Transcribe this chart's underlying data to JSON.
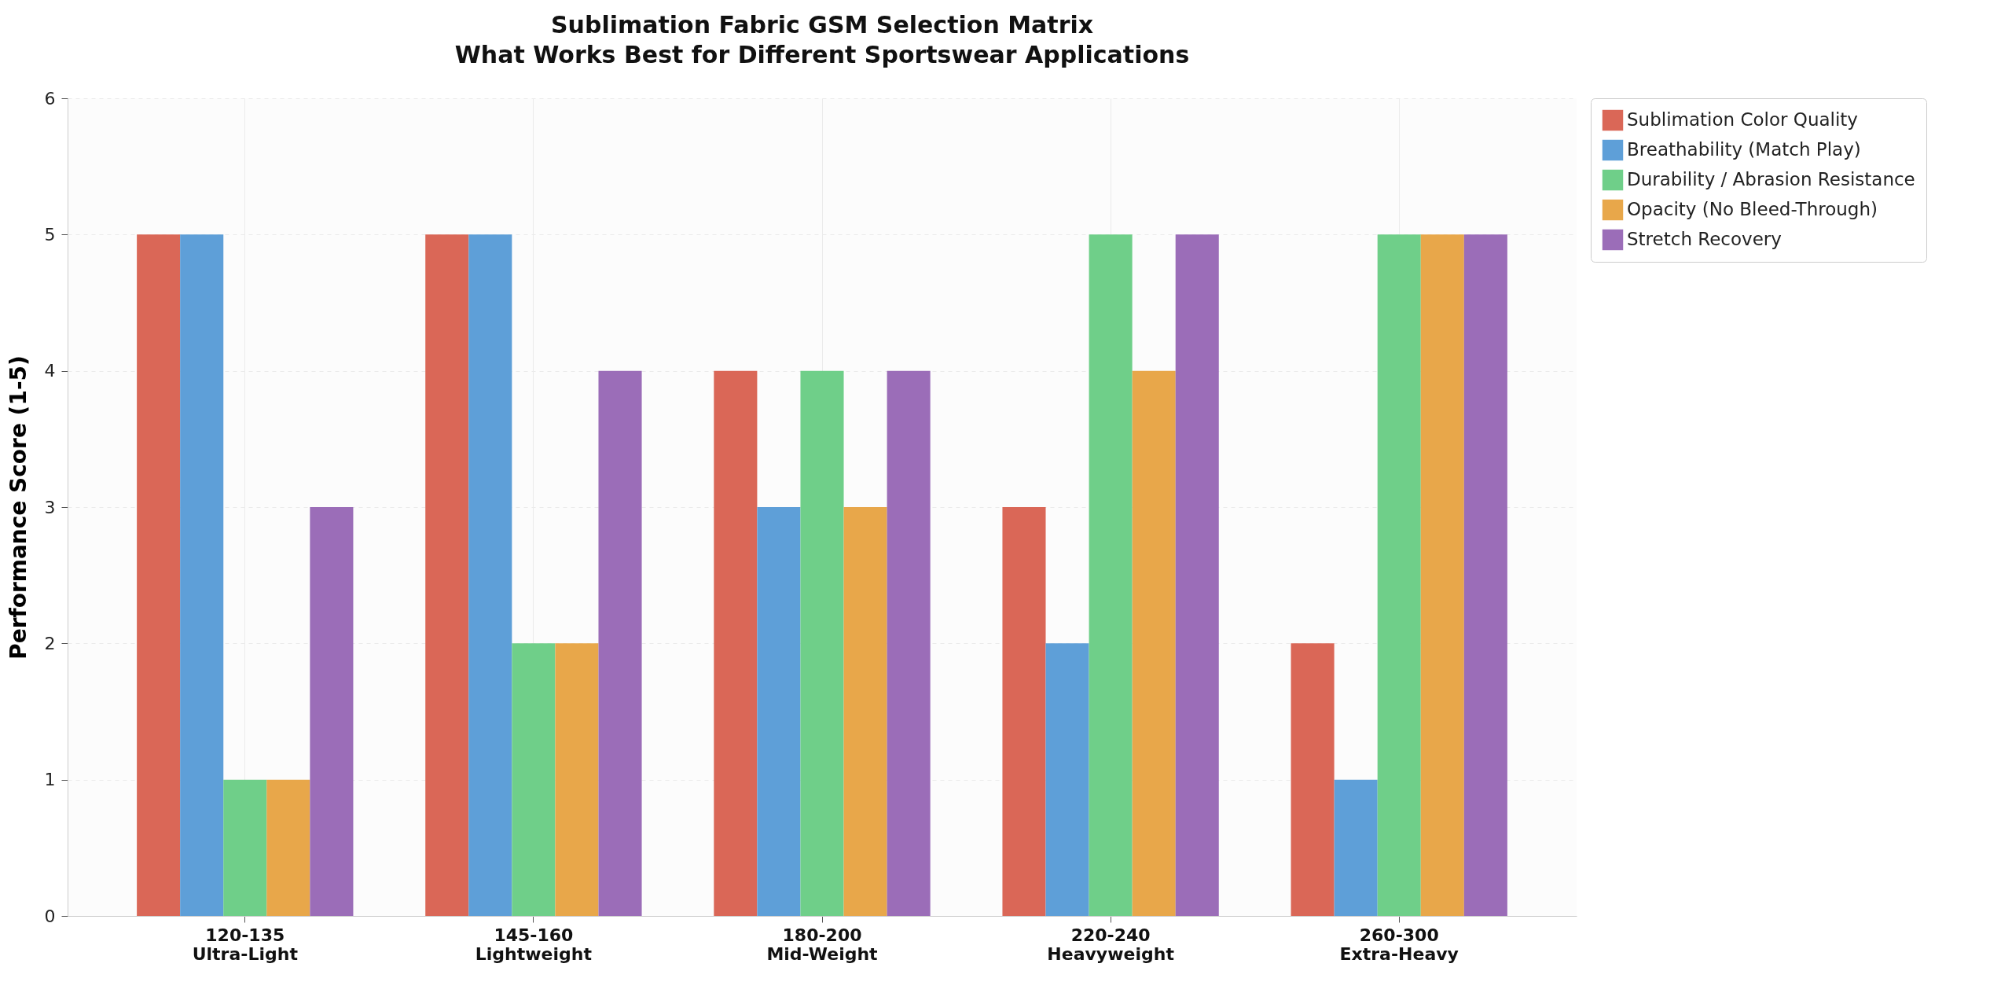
{
  "chart_data": {
    "type": "bar",
    "title": "Sublimation Fabric GSM Selection Matrix\nWhat Works Best for Different Sportswear Applications",
    "ylabel": "Performance Score (1-5)",
    "categories": [
      "120-135\nUltra-Light",
      "145-160\nLightweight",
      "180-200\nMid-Weight",
      "220-240\nHeavyweight",
      "260-300\nExtra-Heavy"
    ],
    "series": [
      {
        "name": "Sublimation Color Quality",
        "color": "#da6757",
        "values": [
          5,
          5,
          4,
          3,
          2
        ]
      },
      {
        "name": "Breathability (Match Play)",
        "color": "#5e9fd8",
        "values": [
          5,
          5,
          3,
          2,
          1
        ]
      },
      {
        "name": "Durability / Abrasion Resistance",
        "color": "#6fcf89",
        "values": [
          1,
          2,
          4,
          5,
          5
        ]
      },
      {
        "name": "Opacity (No Bleed-Through)",
        "color": "#e8a74a",
        "values": [
          1,
          2,
          3,
          4,
          5
        ]
      },
      {
        "name": "Stretch Recovery",
        "color": "#9b6db8",
        "values": [
          3,
          4,
          4,
          5,
          5
        ]
      }
    ],
    "ylim": [
      0,
      6
    ],
    "yticks": [
      0,
      1,
      2,
      3,
      4,
      5,
      6
    ],
    "grid": true,
    "legend": "top right"
  }
}
